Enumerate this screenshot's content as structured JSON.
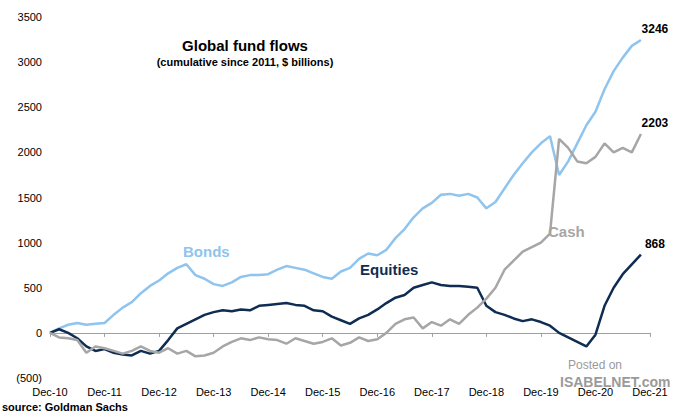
{
  "chart_data": {
    "type": "line",
    "title": "Global fund flows",
    "subtitle": "(cumulative since 2011, $ billions)",
    "source": "source: Goldman Sachs",
    "annotations": [
      "Posted on",
      "ISABELNET.com"
    ],
    "categories": [
      "Dec-10",
      null,
      null,
      null,
      null,
      null,
      "Dec-11",
      null,
      null,
      null,
      null,
      null,
      "Dec-12",
      null,
      null,
      null,
      null,
      null,
      "Dec-13",
      null,
      null,
      null,
      null,
      null,
      "Dec-14",
      null,
      null,
      null,
      null,
      null,
      "Dec-15",
      null,
      null,
      null,
      null,
      null,
      "Dec-16",
      null,
      null,
      null,
      null,
      null,
      "Dec-17",
      null,
      null,
      null,
      null,
      null,
      "Dec-18",
      null,
      null,
      null,
      null,
      null,
      "Dec-19",
      null,
      null,
      null,
      null,
      null,
      "Dec-20",
      null,
      null,
      null,
      null,
      null,
      "Dec-21"
    ],
    "series": [
      {
        "name": "Bonds",
        "color": "#8fc4ee",
        "values": [
          0,
          50,
          90,
          110,
          90,
          100,
          110,
          200,
          280,
          340,
          440,
          520,
          580,
          660,
          720,
          760,
          640,
          600,
          540,
          520,
          560,
          620,
          640,
          640,
          650,
          700,
          740,
          720,
          700,
          660,
          620,
          600,
          680,
          720,
          820,
          880,
          860,
          920,
          1050,
          1150,
          1280,
          1380,
          1440,
          1530,
          1540,
          1520,
          1540,
          1500,
          1380,
          1450,
          1600,
          1750,
          1880,
          2000,
          2100,
          2180,
          1750,
          1900,
          2100,
          2300,
          2450,
          2700,
          2900,
          3050,
          3180,
          3246,
          null
        ]
      },
      {
        "name": "Equities",
        "color": "#0f2d52",
        "values": [
          0,
          40,
          0,
          -60,
          -150,
          -200,
          -180,
          -220,
          -240,
          -250,
          -200,
          -230,
          -200,
          -80,
          50,
          100,
          150,
          200,
          230,
          250,
          240,
          260,
          250,
          300,
          310,
          320,
          330,
          310,
          300,
          250,
          240,
          180,
          140,
          100,
          160,
          200,
          260,
          330,
          390,
          420,
          500,
          530,
          560,
          530,
          520,
          520,
          510,
          500,
          300,
          230,
          200,
          160,
          130,
          150,
          120,
          80,
          0,
          -50,
          -100,
          -150,
          -20,
          300,
          500,
          650,
          760,
          868,
          null
        ]
      },
      {
        "name": "Cash",
        "color": "#a6a6a6",
        "values": [
          0,
          -50,
          -60,
          -80,
          -220,
          -150,
          -170,
          -200,
          -230,
          -200,
          -150,
          -200,
          -220,
          -170,
          -230,
          -200,
          -260,
          -250,
          -220,
          -150,
          -100,
          -60,
          -80,
          -50,
          -70,
          -80,
          -120,
          -60,
          -90,
          -120,
          -100,
          -60,
          -140,
          -110,
          -50,
          -90,
          -70,
          0,
          100,
          150,
          170,
          50,
          120,
          80,
          150,
          100,
          200,
          280,
          380,
          500,
          700,
          800,
          900,
          950,
          1000,
          1100,
          2150,
          2050,
          1900,
          1880,
          1950,
          2100,
          2000,
          2050,
          2000,
          2203,
          null
        ]
      }
    ],
    "ylim": [
      -500,
      3500
    ],
    "yticks": [
      {
        "value": -500,
        "label": "(500)"
      },
      0,
      500,
      1000,
      1500,
      2000,
      2500,
      3000,
      3500
    ],
    "grid": false
  }
}
